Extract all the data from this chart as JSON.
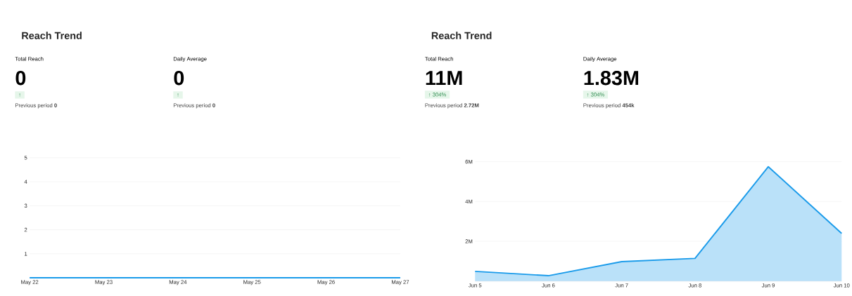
{
  "chart_data": [
    {
      "type": "line",
      "title": "Reach Trend",
      "categories": [
        "May 22",
        "May 23",
        "May 24",
        "May 25",
        "May 26",
        "May 27"
      ],
      "values": [
        0,
        0,
        0,
        0,
        0,
        0
      ],
      "color": "#1a9bea",
      "ylim": [
        0,
        5
      ],
      "yticks": [
        1,
        2,
        3,
        4,
        5
      ],
      "grid": "y",
      "annotations": [
        "Total Reach",
        "0",
        "↑",
        "Previous period **0**",
        "Daily Average",
        "0",
        "↑",
        "Previous period **0**"
      ]
    },
    {
      "type": "area",
      "title": "Reach Trend",
      "categories": [
        "Jun 5",
        "Jun 6",
        "Jun 7",
        "Jun 8",
        "Jun 9",
        "Jun 10"
      ],
      "values": [
        490000,
        270000,
        980000,
        1140000,
        5750000,
        2400000
      ],
      "color": "#1a9bea",
      "ylim": [
        0,
        6000000
      ],
      "yticks": [
        {
          "value": 2000000,
          "label": "2M"
        },
        {
          "value": 4000000,
          "label": "4M"
        },
        {
          "value": 6000000,
          "label": "6M"
        }
      ],
      "grid": "y",
      "annotations": [
        "Total Reach",
        "11M",
        "↑ 304%",
        "Previous period **2.72M**",
        "Daily Average",
        "1.83M",
        "↑ 304%",
        "Previous period **454k**"
      ]
    }
  ]
}
